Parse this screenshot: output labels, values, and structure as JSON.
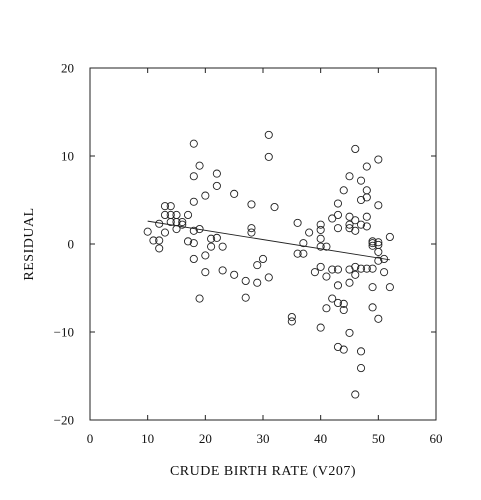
{
  "chart_data": {
    "type": "scatter",
    "title": "",
    "xlabel": "CRUDE BIRTH RATE (V207)",
    "ylabel": "RESIDUAL",
    "xlim": [
      0,
      60
    ],
    "ylim": [
      -20,
      20
    ],
    "x_ticks": [
      0,
      10,
      20,
      30,
      40,
      50,
      60
    ],
    "y_ticks": [
      -20,
      -10,
      0,
      10,
      20
    ],
    "x_tick_labels": [
      "0",
      "10",
      "20",
      "30",
      "40",
      "50",
      "60"
    ],
    "y_tick_labels": [
      "−20",
      "−10",
      "0",
      "10",
      "20"
    ],
    "grid": false,
    "marker": "open-circle",
    "points": [
      [
        10,
        1.4
      ],
      [
        11,
        0.4
      ],
      [
        12,
        0.4
      ],
      [
        12,
        -0.5
      ],
      [
        12,
        2.3
      ],
      [
        13,
        4.3
      ],
      [
        13,
        3.3
      ],
      [
        13,
        1.3
      ],
      [
        14,
        4.3
      ],
      [
        14,
        3.3
      ],
      [
        14,
        2.5
      ],
      [
        15,
        3.3
      ],
      [
        15,
        2.5
      ],
      [
        15,
        1.7
      ],
      [
        16,
        2.5
      ],
      [
        16,
        2.2
      ],
      [
        17,
        3.3
      ],
      [
        17,
        0.3
      ],
      [
        18,
        11.4
      ],
      [
        18,
        7.7
      ],
      [
        18,
        4.8
      ],
      [
        18,
        1.5
      ],
      [
        18,
        0.1
      ],
      [
        18,
        -1.7
      ],
      [
        19,
        8.9
      ],
      [
        19,
        1.7
      ],
      [
        19,
        -6.2
      ],
      [
        20,
        5.5
      ],
      [
        20,
        -1.3
      ],
      [
        20,
        -3.2
      ],
      [
        21,
        0.6
      ],
      [
        21,
        -0.3
      ],
      [
        22,
        8.0
      ],
      [
        22,
        6.6
      ],
      [
        22,
        0.7
      ],
      [
        23,
        -0.3
      ],
      [
        23,
        -3.0
      ],
      [
        25,
        5.7
      ],
      [
        25,
        -3.5
      ],
      [
        27,
        -4.2
      ],
      [
        27,
        -6.1
      ],
      [
        28,
        1.8
      ],
      [
        28,
        1.3
      ],
      [
        28,
        4.5
      ],
      [
        29,
        -2.4
      ],
      [
        29,
        -4.4
      ],
      [
        30,
        -1.7
      ],
      [
        31,
        12.4
      ],
      [
        31,
        9.9
      ],
      [
        31,
        -3.8
      ],
      [
        32,
        4.2
      ],
      [
        35,
        -8.3
      ],
      [
        35,
        -8.8
      ],
      [
        36,
        2.4
      ],
      [
        36,
        -1.1
      ],
      [
        37,
        0.1
      ],
      [
        37,
        -1.1
      ],
      [
        38,
        1.3
      ],
      [
        39,
        -3.2
      ],
      [
        40,
        2.2
      ],
      [
        40,
        1.6
      ],
      [
        40,
        0.6
      ],
      [
        40,
        -0.3
      ],
      [
        40,
        -2.6
      ],
      [
        40,
        -9.5
      ],
      [
        41,
        -0.3
      ],
      [
        41,
        -3.7
      ],
      [
        41,
        -7.3
      ],
      [
        42,
        2.9
      ],
      [
        42,
        -2.9
      ],
      [
        42,
        -6.2
      ],
      [
        43,
        4.6
      ],
      [
        43,
        3.3
      ],
      [
        43,
        1.8
      ],
      [
        43,
        -2.9
      ],
      [
        43,
        -4.7
      ],
      [
        43,
        -6.7
      ],
      [
        43,
        -11.7
      ],
      [
        44,
        6.1
      ],
      [
        44,
        -6.8
      ],
      [
        44,
        -7.5
      ],
      [
        44,
        -12.0
      ],
      [
        45,
        7.7
      ],
      [
        45,
        3.1
      ],
      [
        45,
        2.2
      ],
      [
        45,
        1.8
      ],
      [
        45,
        -2.9
      ],
      [
        45,
        -4.4
      ],
      [
        45,
        -10.1
      ],
      [
        46,
        10.8
      ],
      [
        46,
        2.7
      ],
      [
        46,
        1.5
      ],
      [
        46,
        -2.6
      ],
      [
        46,
        -3.5
      ],
      [
        46,
        -17.1
      ],
      [
        47,
        7.2
      ],
      [
        47,
        5.0
      ],
      [
        47,
        2.2
      ],
      [
        47,
        -2.8
      ],
      [
        47,
        -12.2
      ],
      [
        47,
        -14.1
      ],
      [
        48,
        8.8
      ],
      [
        48,
        6.1
      ],
      [
        48,
        5.3
      ],
      [
        48,
        3.1
      ],
      [
        48,
        2.0
      ],
      [
        48,
        -2.8
      ],
      [
        49,
        0.3
      ],
      [
        49,
        0.1
      ],
      [
        49,
        -0.2
      ],
      [
        49,
        -2.8
      ],
      [
        49,
        -4.9
      ],
      [
        49,
        -7.2
      ],
      [
        50,
        9.6
      ],
      [
        50,
        4.4
      ],
      [
        50,
        0.2
      ],
      [
        50,
        -0.1
      ],
      [
        50,
        -0.9
      ],
      [
        50,
        -1.9
      ],
      [
        50,
        -8.5
      ],
      [
        51,
        -1.7
      ],
      [
        51,
        -3.2
      ],
      [
        52,
        0.8
      ],
      [
        52,
        -4.9
      ]
    ],
    "trend_line": {
      "x": [
        10,
        52
      ],
      "y": [
        2.6,
        -1.8
      ]
    }
  }
}
